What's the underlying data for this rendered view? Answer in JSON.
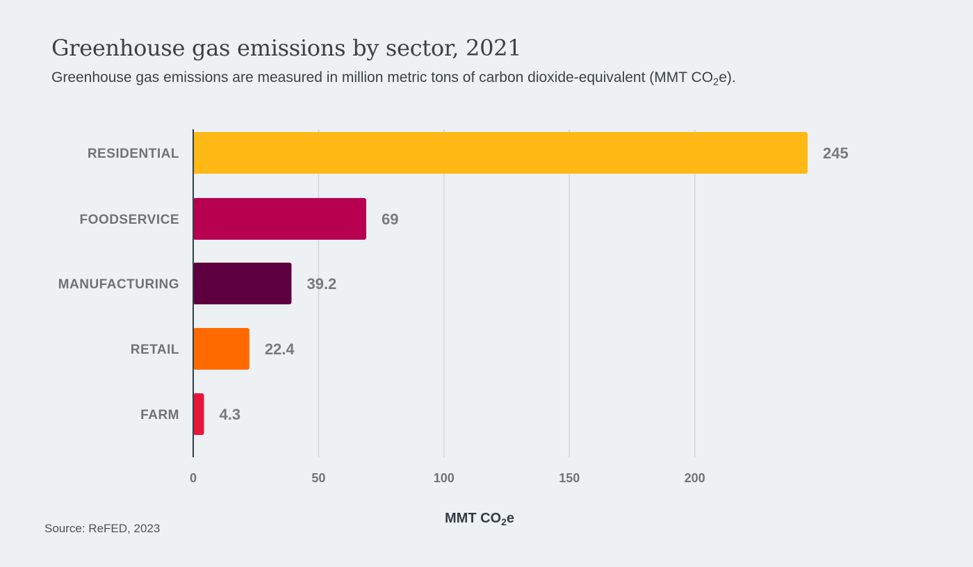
{
  "header": {
    "title": "Greenhouse gas emissions by sector, 2021",
    "subtitle_prefix": "Greenhouse gas emissions are measured in million metric tons of carbon dioxide-equivalent (MMT CO",
    "subtitle_sub": "2",
    "subtitle_suffix": "e)."
  },
  "footer": {
    "source": "Source: ReFED, 2023"
  },
  "chart_data": {
    "type": "bar",
    "orientation": "horizontal",
    "categories": [
      "RESIDENTIAL",
      "FOODSERVICE",
      "MANUFACTURING",
      "RETAIL",
      "FARM"
    ],
    "values": [
      245,
      69,
      39.2,
      22.4,
      4.3
    ],
    "value_labels": [
      "245",
      "69",
      "39.2",
      "22.4",
      "4.3"
    ],
    "colors": [
      "#ffb814",
      "#b80051",
      "#5e0040",
      "#ff6a00",
      "#e8153a"
    ],
    "xlim": [
      0,
      245
    ],
    "x_ticks": [
      0,
      50,
      100,
      150,
      200
    ],
    "x_tick_labels": [
      "0",
      "50",
      "100",
      "150",
      "200"
    ],
    "xlabel_prefix": "MMT CO",
    "xlabel_sub": "2",
    "xlabel_suffix": "e",
    "grid": true,
    "axis_color": "#2f3f46",
    "grid_color": "#d3d6d6"
  }
}
